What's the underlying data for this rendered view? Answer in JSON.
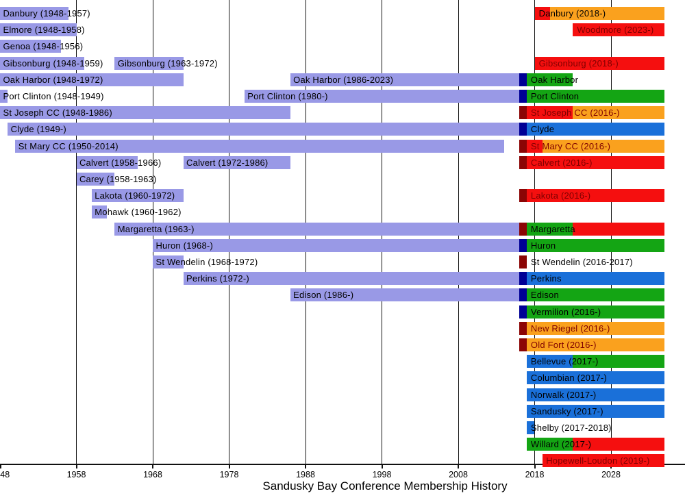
{
  "chart_data": {
    "type": "timeline",
    "title": "Sandusky Bay Conference Membership History",
    "x_axis": {
      "start_year": 1948,
      "end_year": 2035,
      "ticks": [
        {
          "label": "48",
          "year": 1948,
          "grid": false,
          "label_year": 1948.65
        },
        {
          "label": "1958",
          "year": 1958,
          "grid": true
        },
        {
          "label": "1968",
          "year": 1968,
          "grid": true
        },
        {
          "label": "1978",
          "year": 1978,
          "grid": true
        },
        {
          "label": "1988",
          "year": 1988,
          "grid": true
        },
        {
          "label": "1998",
          "year": 1998,
          "grid": true
        },
        {
          "label": "2008",
          "year": 2008,
          "grid": true
        },
        {
          "label": "2018",
          "year": 2018,
          "grid": true
        },
        {
          "label": "2028",
          "year": 2028,
          "grid": true
        }
      ]
    },
    "colors": {
      "purple": "#9999E6",
      "navy": "#000095",
      "blue": "#1A70D9",
      "green": "#14A514",
      "red": "#F50F0F",
      "orange": "#FAA11E",
      "maroon": "#8B0505",
      "black_text": "#000000",
      "maroon_text": "#7F0000"
    },
    "rows": [
      {
        "name": "Danbury",
        "bars": [
          [
            "purple",
            1948,
            1957
          ],
          [
            "red",
            2018,
            2020
          ],
          [
            "orange",
            2020,
            2035
          ]
        ],
        "labels": [
          [
            "Danbury (1948-1957)",
            1948.4,
            "black"
          ],
          [
            "Danbury (2018-)",
            2018.55,
            "black"
          ]
        ]
      },
      {
        "name": "Elmore / Woodmore",
        "bars": [
          [
            "purple",
            1948,
            1958
          ],
          [
            "red",
            2023,
            2035
          ]
        ],
        "labels": [
          [
            "Elmore (1948-1958)",
            1948.4,
            "black"
          ],
          [
            "Woodmore (2023-)",
            2023.55,
            "maroon"
          ]
        ]
      },
      {
        "name": "Genoa",
        "bars": [
          [
            "purple",
            1948,
            1956
          ]
        ],
        "labels": [
          [
            "Genoa (1948-1956)",
            1948.4,
            "black"
          ]
        ]
      },
      {
        "name": "Gibsonburg",
        "bars": [
          [
            "purple",
            1948,
            1959
          ],
          [
            "purple",
            1963,
            1972
          ],
          [
            "red",
            2018,
            2035
          ]
        ],
        "labels": [
          [
            "Gibsonburg (1948-1959)",
            1948.4,
            "black"
          ],
          [
            "Gibsonburg (1963-1972)",
            1963.4,
            "black"
          ],
          [
            "Gibsonburg (2018-)",
            2018.55,
            "maroon"
          ]
        ]
      },
      {
        "name": "Oak Harbor",
        "bars": [
          [
            "purple",
            1948,
            1972
          ],
          [
            "purple",
            1986,
            2016
          ],
          [
            "navy",
            2016,
            2017
          ],
          [
            "green",
            2017,
            2023
          ]
        ],
        "labels": [
          [
            "Oak Harbor (1948-1972)",
            1948.4,
            "black"
          ],
          [
            "Oak Harbor (1986-2023)",
            1986.4,
            "black"
          ],
          [
            "Oak Harbor",
            2017.5,
            "black"
          ]
        ]
      },
      {
        "name": "Port Clinton",
        "bars": [
          [
            "purple",
            1948,
            1949
          ],
          [
            "purple",
            1980,
            2016
          ],
          [
            "navy",
            2016,
            2017
          ],
          [
            "green",
            2017,
            2035
          ]
        ],
        "labels": [
          [
            "Port Clinton (1948-1949)",
            1948.4,
            "black"
          ],
          [
            "Port Clinton (1980-)",
            1980.4,
            "black"
          ],
          [
            "Port Clinton",
            2017.5,
            "black"
          ]
        ]
      },
      {
        "name": "St Joseph CC",
        "bars": [
          [
            "purple",
            1948,
            1986
          ],
          [
            "maroon",
            2016,
            2017
          ],
          [
            "red",
            2017,
            2023
          ],
          [
            "orange",
            2023,
            2035
          ]
        ],
        "labels": [
          [
            "St Joseph CC (1948-1986)",
            1948.4,
            "black"
          ],
          [
            "St Joseph CC (2016-)",
            2017.5,
            "maroon"
          ]
        ]
      },
      {
        "name": "Clyde",
        "bars": [
          [
            "purple",
            1949,
            2016
          ],
          [
            "navy",
            2016,
            2017
          ],
          [
            "blue",
            2017,
            2035
          ]
        ],
        "labels": [
          [
            "Clyde (1949-)",
            1949.4,
            "black"
          ],
          [
            "Clyde",
            2017.5,
            "black"
          ]
        ]
      },
      {
        "name": "St Mary CC",
        "bars": [
          [
            "purple",
            1950,
            2014
          ],
          [
            "maroon",
            2016,
            2017
          ],
          [
            "red",
            2017,
            2019
          ],
          [
            "orange",
            2019,
            2035
          ]
        ],
        "labels": [
          [
            "St Mary CC (1950-2014)",
            1950.4,
            "black"
          ],
          [
            "St Mary CC (2016-)",
            2017.5,
            "maroon"
          ]
        ]
      },
      {
        "name": "Calvert",
        "bars": [
          [
            "purple",
            1958,
            1966
          ],
          [
            "purple",
            1972,
            1986
          ],
          [
            "maroon",
            2016,
            2017
          ],
          [
            "red",
            2017,
            2035
          ]
        ],
        "labels": [
          [
            "Calvert (1958-1966)",
            1958.4,
            "black"
          ],
          [
            "Calvert (1972-1986)",
            1972.4,
            "black"
          ],
          [
            "Calvert (2016-)",
            2017.5,
            "maroon"
          ]
        ]
      },
      {
        "name": "Carey",
        "bars": [
          [
            "purple",
            1958,
            1963
          ]
        ],
        "labels": [
          [
            "Carey (1958-1963)",
            1958.4,
            "black"
          ]
        ]
      },
      {
        "name": "Lakota",
        "bars": [
          [
            "purple",
            1960,
            1972
          ],
          [
            "maroon",
            2016,
            2017
          ],
          [
            "red",
            2017,
            2035
          ]
        ],
        "labels": [
          [
            "Lakota (1960-1972)",
            1960.4,
            "black"
          ],
          [
            "Lakota (2016-)",
            2017.5,
            "maroon"
          ]
        ]
      },
      {
        "name": "Mohawk",
        "bars": [
          [
            "purple",
            1960,
            1962
          ]
        ],
        "labels": [
          [
            "Mohawk (1960-1962)",
            1960.4,
            "black"
          ]
        ]
      },
      {
        "name": "Margaretta",
        "bars": [
          [
            "purple",
            1963,
            2016
          ],
          [
            "maroon",
            2016,
            2017
          ],
          [
            "green",
            2017,
            2023
          ],
          [
            "red",
            2023,
            2035
          ]
        ],
        "labels": [
          [
            "Margaretta (1963-)",
            1963.4,
            "black"
          ],
          [
            "Margaretta",
            2017.5,
            "black"
          ]
        ]
      },
      {
        "name": "Huron",
        "bars": [
          [
            "purple",
            1968,
            2016
          ],
          [
            "navy",
            2016,
            2017
          ],
          [
            "green",
            2017,
            2035
          ]
        ],
        "labels": [
          [
            "Huron (1968-)",
            1968.4,
            "black"
          ],
          [
            "Huron",
            2017.5,
            "black"
          ]
        ]
      },
      {
        "name": "St Wendelin",
        "bars": [
          [
            "purple",
            1968,
            1972
          ],
          [
            "maroon",
            2016,
            2017
          ]
        ],
        "labels": [
          [
            "St Wendelin (1968-1972)",
            1968.4,
            "black"
          ],
          [
            "St Wendelin (2016-2017)",
            2017.5,
            "black"
          ]
        ]
      },
      {
        "name": "Perkins",
        "bars": [
          [
            "purple",
            1972,
            2016
          ],
          [
            "navy",
            2016,
            2017
          ],
          [
            "blue",
            2017,
            2035
          ]
        ],
        "labels": [
          [
            "Perkins (1972-)",
            1972.4,
            "black"
          ],
          [
            "Perkins",
            2017.5,
            "black"
          ]
        ]
      },
      {
        "name": "Edison",
        "bars": [
          [
            "purple",
            1986,
            2016
          ],
          [
            "navy",
            2016,
            2017
          ],
          [
            "green",
            2017,
            2035
          ]
        ],
        "labels": [
          [
            "Edison (1986-)",
            1986.4,
            "black"
          ],
          [
            "Edison",
            2017.5,
            "black"
          ]
        ]
      },
      {
        "name": "Vermilion",
        "bars": [
          [
            "navy",
            2016,
            2017
          ],
          [
            "green",
            2017,
            2035
          ]
        ],
        "labels": [
          [
            "Vermilion (2016-)",
            2017.5,
            "black"
          ]
        ]
      },
      {
        "name": "New Riegel",
        "bars": [
          [
            "maroon",
            2016,
            2017
          ],
          [
            "orange",
            2017,
            2035
          ]
        ],
        "labels": [
          [
            "New Riegel (2016-)",
            2017.5,
            "maroon"
          ]
        ]
      },
      {
        "name": "Old Fort",
        "bars": [
          [
            "maroon",
            2016,
            2017
          ],
          [
            "orange",
            2017,
            2035
          ]
        ],
        "labels": [
          [
            "Old Fort (2016-)",
            2017.5,
            "maroon"
          ]
        ]
      },
      {
        "name": "Bellevue",
        "bars": [
          [
            "blue",
            2017,
            2023
          ],
          [
            "green",
            2023,
            2035
          ]
        ],
        "labels": [
          [
            "Bellevue (2017-)",
            2017.5,
            "black"
          ]
        ]
      },
      {
        "name": "Columbian",
        "bars": [
          [
            "blue",
            2017,
            2035
          ]
        ],
        "labels": [
          [
            "Columbian (2017-)",
            2017.5,
            "black"
          ]
        ]
      },
      {
        "name": "Norwalk",
        "bars": [
          [
            "blue",
            2017,
            2035
          ]
        ],
        "labels": [
          [
            "Norwalk (2017-)",
            2017.5,
            "black"
          ]
        ]
      },
      {
        "name": "Sandusky",
        "bars": [
          [
            "blue",
            2017,
            2035
          ]
        ],
        "labels": [
          [
            "Sandusky (2017-)",
            2017.5,
            "black"
          ]
        ]
      },
      {
        "name": "Shelby",
        "bars": [
          [
            "blue",
            2017,
            2018
          ]
        ],
        "labels": [
          [
            "Shelby (2017-2018)",
            2017.5,
            "black"
          ]
        ]
      },
      {
        "name": "Willard",
        "bars": [
          [
            "green",
            2017,
            2023
          ],
          [
            "red",
            2023,
            2035
          ]
        ],
        "labels": [
          [
            "Willard (2017-)",
            2017.5,
            "black"
          ]
        ]
      },
      {
        "name": "Hopewell-Loudon",
        "bars": [
          [
            "red",
            2019,
            2035
          ]
        ],
        "labels": [
          [
            "Hopewell-Loudon (2019-)",
            2019.5,
            "maroon"
          ]
        ]
      }
    ]
  }
}
